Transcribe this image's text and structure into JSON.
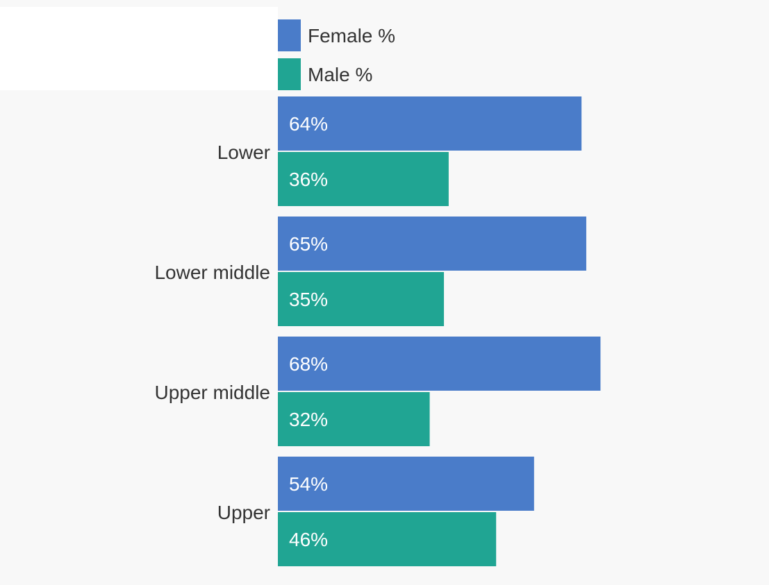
{
  "chart_data": {
    "type": "bar",
    "orientation": "horizontal",
    "categories": [
      "Lower",
      "Lower middle",
      "Upper middle",
      "Upper"
    ],
    "series": [
      {
        "name": "Female %",
        "values": [
          64,
          65,
          68,
          54
        ],
        "labels": [
          "64%",
          "65%",
          "68%",
          "54%"
        ],
        "color": "#4a7cc9"
      },
      {
        "name": "Male %",
        "values": [
          36,
          35,
          32,
          46
        ],
        "labels": [
          "36%",
          "35%",
          "32%",
          "46%"
        ],
        "color": "#20a593"
      }
    ],
    "xlim": [
      0,
      100
    ],
    "grid": false,
    "legend_position": "top",
    "data_label_color": "#ffffff",
    "category_label_color": "#333333"
  }
}
